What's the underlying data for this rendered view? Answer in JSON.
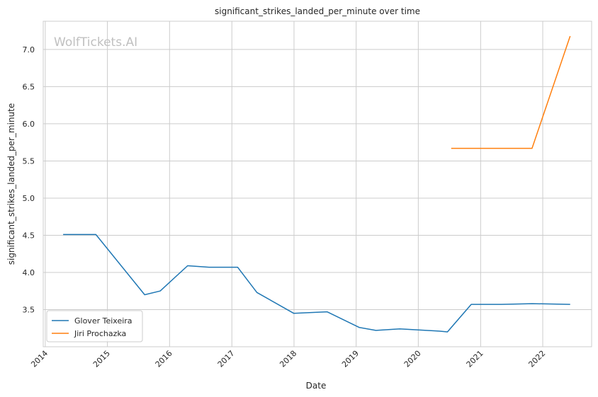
{
  "chart_data": {
    "type": "line",
    "title": "significant_strikes_landed_per_minute over time",
    "xlabel": "Date",
    "ylabel": "significant_strikes_landed_per_minute",
    "watermark": "WolfTickets.AI",
    "x_ticks": [
      "2014",
      "2015",
      "2016",
      "2017",
      "2018",
      "2019",
      "2020",
      "2021",
      "2022"
    ],
    "y_ticks": [
      "3.5",
      "4.0",
      "4.5",
      "5.0",
      "5.5",
      "6.0",
      "6.5",
      "7.0"
    ],
    "ylim": [
      3.0,
      7.38
    ],
    "xlim": [
      "2013-12-20",
      "2022-10-15"
    ],
    "grid": true,
    "legend_position": "lower-left",
    "series": [
      {
        "name": "Glover Teixeira",
        "color": "#1f77b4",
        "points": [
          {
            "x": "2014-04-16",
            "y": 4.51
          },
          {
            "x": "2014-10-25",
            "y": 4.51
          },
          {
            "x": "2015-08-08",
            "y": 3.7
          },
          {
            "x": "2015-11-07",
            "y": 3.75
          },
          {
            "x": "2016-04-16",
            "y": 4.09
          },
          {
            "x": "2016-08-20",
            "y": 4.07
          },
          {
            "x": "2017-02-04",
            "y": 4.07
          },
          {
            "x": "2017-05-28",
            "y": 3.73
          },
          {
            "x": "2017-12-30",
            "y": 3.45
          },
          {
            "x": "2018-07-14",
            "y": 3.47
          },
          {
            "x": "2019-01-19",
            "y": 3.26
          },
          {
            "x": "2019-04-27",
            "y": 3.22
          },
          {
            "x": "2019-09-14",
            "y": 3.24
          },
          {
            "x": "2020-05-02",
            "y": 3.21
          },
          {
            "x": "2020-06-20",
            "y": 3.2
          },
          {
            "x": "2020-11-07",
            "y": 3.57
          },
          {
            "x": "2021-05-01",
            "y": 3.57
          },
          {
            "x": "2021-10-30",
            "y": 3.58
          },
          {
            "x": "2022-06-11",
            "y": 3.57
          }
        ]
      },
      {
        "name": "Jiri Prochazka",
        "color": "#ff7f0e",
        "points": [
          {
            "x": "2020-07-12",
            "y": 5.67
          },
          {
            "x": "2021-10-30",
            "y": 5.67
          },
          {
            "x": "2022-06-11",
            "y": 7.18
          }
        ]
      }
    ]
  }
}
